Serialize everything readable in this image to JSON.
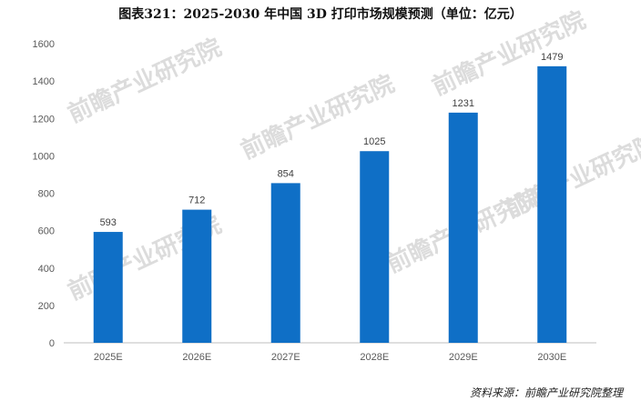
{
  "header": {
    "title": "图表321：2025-2030 年中国 3D 打印市场规模预测（单位：亿元）"
  },
  "source": "资料来源：前瞻产业研究院整理",
  "watermark": "前瞻产业研究院",
  "colors": {
    "bar": "#0F6FC6",
    "axis": "#bfbfbf",
    "text": "#595959"
  },
  "chart_data": {
    "type": "bar",
    "title": "图表321：2025-2030 年中国 3D 打印市场规模预测（单位：亿元）",
    "categories": [
      "2025E",
      "2026E",
      "2027E",
      "2028E",
      "2029E",
      "2030E"
    ],
    "values": [
      593,
      712,
      854,
      1025,
      1231,
      1479
    ],
    "ylim": [
      0,
      1600
    ],
    "yticks": [
      0,
      200,
      400,
      600,
      800,
      1000,
      1200,
      1400,
      1600
    ],
    "xlabel": "",
    "ylabel": "",
    "grid": false,
    "legend": "none",
    "data_labels": true
  }
}
